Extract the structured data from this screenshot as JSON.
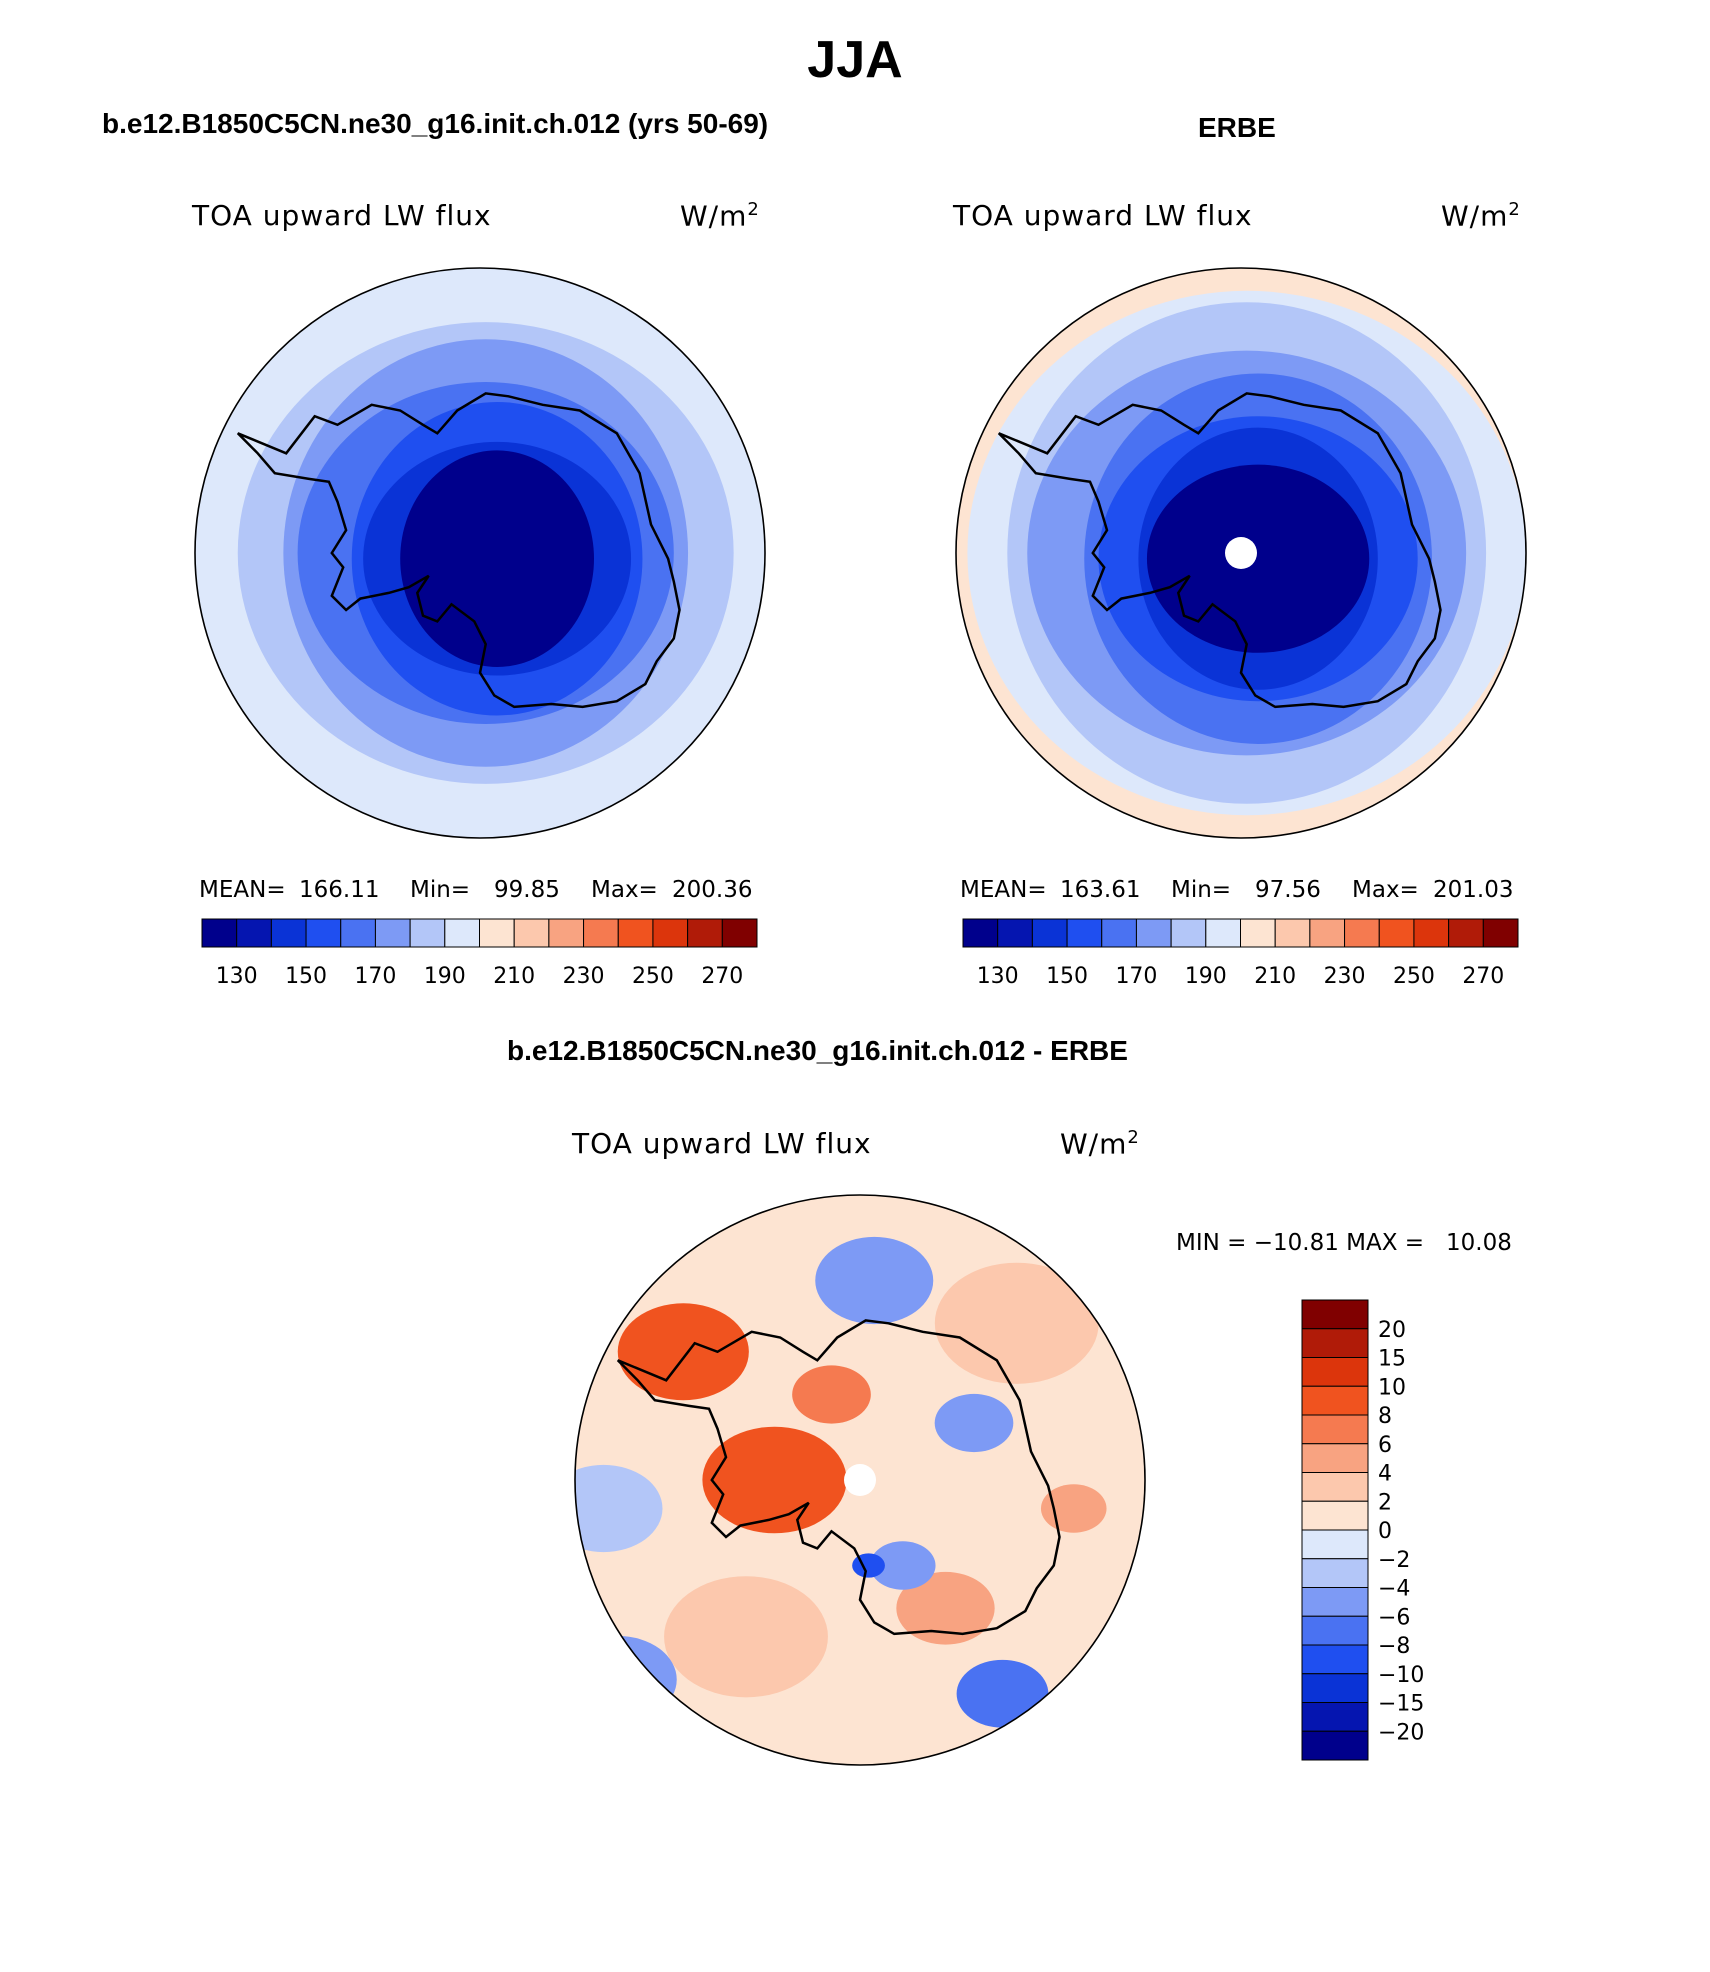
{
  "figure": {
    "season": "JJA",
    "panels": [
      {
        "title": "b.e12.B1850C5CN.ne30_g16.init.ch.012 (yrs 50-69)",
        "variable": "TOA upward LW flux",
        "units_base": "W/m",
        "units_exp": "2",
        "stats": {
          "mean_label": "MEAN=",
          "mean": "166.11",
          "min_label": "Min=",
          "min": "99.85",
          "max_label": "Max=",
          "max": "200.36"
        }
      },
      {
        "title": "ERBE",
        "variable": "TOA upward LW flux",
        "units_base": "W/m",
        "units_exp": "2",
        "stats": {
          "mean_label": "MEAN=",
          "mean": "163.61",
          "min_label": "Min=",
          "min": "97.56",
          "max_label": "Max=",
          "max": "201.03"
        }
      },
      {
        "title": "b.e12.B1850C5CN.ne30_g16.init.ch.012 - ERBE",
        "variable": "TOA upward LW flux",
        "units_base": "W/m",
        "units_exp": "2",
        "stats": {
          "minmax": "MIN = −10.81 MAX =   10.08"
        }
      }
    ]
  },
  "chart_data": [
    {
      "type": "heatmap",
      "projection": "south-polar-stereographic",
      "title": "b.e12.B1850C5CN.ne30_g16.init.ch.012 (yrs 50-69)",
      "field": "TOA upward LW flux",
      "units": "W/m^2",
      "colorbar": {
        "orientation": "horizontal",
        "levels": [
          130,
          140,
          150,
          160,
          170,
          180,
          190,
          200,
          210,
          220,
          230,
          240,
          250,
          260,
          270
        ],
        "tick_labels": [
          "130",
          "150",
          "170",
          "190",
          "210",
          "230",
          "250",
          "270"
        ],
        "colors": [
          "#00008c",
          "#0515b0",
          "#0a33d6",
          "#1f4ff0",
          "#4a72f2",
          "#7d9af5",
          "#b3c6f8",
          "#dde8fb",
          "#fde4d2",
          "#fcc8ad",
          "#f8a381",
          "#f57a50",
          "#f0531f",
          "#dc350c",
          "#b01b08",
          "#800000"
        ]
      },
      "rings": [
        {
          "value": 195,
          "r": 1.0
        },
        {
          "value": 185,
          "r": 0.84
        },
        {
          "value": 175,
          "r": 0.73
        },
        {
          "value": 165,
          "r": 0.63
        },
        {
          "value": 155,
          "r": 0.53
        },
        {
          "value": 145,
          "r": 0.44
        },
        {
          "value": 125,
          "r": 0.36
        }
      ],
      "mean": 166.11,
      "min": 99.85,
      "max": 200.36
    },
    {
      "type": "heatmap",
      "projection": "south-polar-stereographic",
      "title": "ERBE",
      "field": "TOA upward LW flux",
      "units": "W/m^2",
      "colorbar": {
        "orientation": "horizontal",
        "levels": [
          130,
          140,
          150,
          160,
          170,
          180,
          190,
          200,
          210,
          220,
          230,
          240,
          250,
          260,
          270
        ],
        "tick_labels": [
          "130",
          "150",
          "170",
          "190",
          "210",
          "230",
          "250",
          "270"
        ],
        "colors": [
          "#00008c",
          "#0515b0",
          "#0a33d6",
          "#1f4ff0",
          "#4a72f2",
          "#7d9af5",
          "#b3c6f8",
          "#dde8fb",
          "#fde4d2",
          "#fcc8ad",
          "#f8a381",
          "#f57a50",
          "#f0531f",
          "#dc350c",
          "#b01b08",
          "#800000"
        ]
      },
      "rings": [
        {
          "value": 205,
          "r": 1.0
        },
        {
          "value": 195,
          "r": 0.95
        },
        {
          "value": 185,
          "r": 0.86
        },
        {
          "value": 175,
          "r": 0.74
        },
        {
          "value": 165,
          "r": 0.63
        },
        {
          "value": 155,
          "r": 0.53
        },
        {
          "value": 145,
          "r": 0.44
        },
        {
          "value": 125,
          "r": 0.36
        }
      ],
      "pole_missing": true,
      "mean": 163.61,
      "min": 97.56,
      "max": 201.03
    },
    {
      "type": "heatmap",
      "projection": "south-polar-stereographic",
      "title": "b.e12.B1850C5CN.ne30_g16.init.ch.012 - ERBE",
      "field": "TOA upward LW flux",
      "units": "W/m^2",
      "colorbar": {
        "orientation": "vertical",
        "tick_labels": [
          "20",
          "15",
          "10",
          "8",
          "6",
          "4",
          "2",
          "0",
          "−2",
          "−4",
          "−6",
          "−8",
          "−10",
          "−15",
          "−20"
        ],
        "colors": [
          "#800000",
          "#b01b08",
          "#dc350c",
          "#f0531f",
          "#f57a50",
          "#f8a381",
          "#fcc8ad",
          "#fde4d2",
          "#dde8fb",
          "#b3c6f8",
          "#7d9af5",
          "#4a72f2",
          "#1f4ff0",
          "#0a33d6",
          "#0515b0",
          "#00008c"
        ]
      },
      "anomalies": [
        {
          "value": 9,
          "x": -0.62,
          "y": -0.45,
          "r": 0.2
        },
        {
          "value": 9,
          "x": -0.3,
          "y": 0.0,
          "r": 0.22
        },
        {
          "value": 7,
          "x": -0.1,
          "y": -0.3,
          "r": 0.12
        },
        {
          "value": 5,
          "x": 0.3,
          "y": 0.45,
          "r": 0.15
        },
        {
          "value": 5,
          "x": 0.75,
          "y": 0.1,
          "r": 0.1
        },
        {
          "value": 3,
          "x": -0.4,
          "y": 0.55,
          "r": 0.25
        },
        {
          "value": 3,
          "x": 0.55,
          "y": -0.55,
          "r": 0.25
        },
        {
          "value": -3,
          "x": -0.9,
          "y": 0.1,
          "r": 0.18
        },
        {
          "value": -5,
          "x": 0.05,
          "y": -0.7,
          "r": 0.18
        },
        {
          "value": -5,
          "x": 0.4,
          "y": -0.2,
          "r": 0.12
        },
        {
          "value": -5,
          "x": 0.15,
          "y": 0.3,
          "r": 0.1
        },
        {
          "value": -9,
          "x": 0.03,
          "y": 0.3,
          "r": 0.05
        },
        {
          "value": -7,
          "x": 0.5,
          "y": 0.75,
          "r": 0.14
        },
        {
          "value": -5,
          "x": -0.85,
          "y": 0.7,
          "r": 0.18
        }
      ],
      "pole_missing": true,
      "min": -10.81,
      "max": 10.08
    }
  ]
}
